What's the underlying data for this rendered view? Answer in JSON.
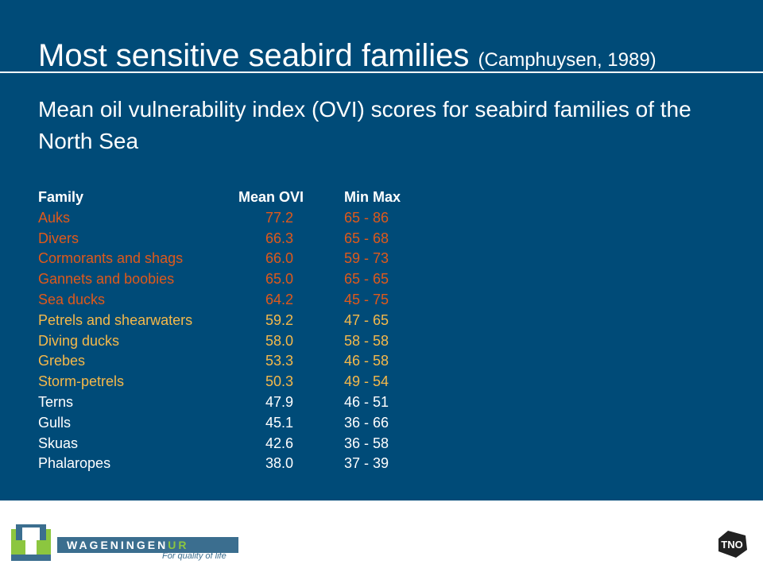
{
  "slide": {
    "title": "Most sensitive seabird families",
    "title_citation": "(Camphuysen, 1989)",
    "subtitle": "Mean oil vulnerability index (OVI) scores for seabird families of the North Sea"
  },
  "table": {
    "headers": [
      "Family",
      "Mean OVI",
      "Min Max"
    ],
    "rows": [
      {
        "family": "Auks",
        "mean": "77.2",
        "range": "65 - 86",
        "color": "orange"
      },
      {
        "family": "Divers",
        "mean": "66.3",
        "range": "65 - 68",
        "color": "orange"
      },
      {
        "family": "Cormorants and shags",
        "mean": "66.0",
        "range": "59 - 73",
        "color": "orange"
      },
      {
        "family": "Gannets and boobies",
        "mean": "65.0",
        "range": "65 - 65",
        "color": "orange"
      },
      {
        "family": "Sea ducks",
        "mean": "64.2",
        "range": "45 - 75",
        "color": "orange"
      },
      {
        "family": "Petrels and shearwaters",
        "mean": "59.2",
        "range": "47 - 65",
        "color": "yellow"
      },
      {
        "family": "Diving ducks",
        "mean": "58.0",
        "range": "58 - 58",
        "color": "yellow"
      },
      {
        "family": "Grebes",
        "mean": "53.3",
        "range": "46 - 58",
        "color": "yellow"
      },
      {
        "family": "Storm-petrels",
        "mean": "50.3",
        "range": "49 - 54",
        "color": "yellow"
      },
      {
        "family": "Terns",
        "mean": "47.9",
        "range": "46 - 51",
        "color": "white"
      },
      {
        "family": "Gulls",
        "mean": "45.1",
        "range": "36 - 66",
        "color": "white"
      },
      {
        "family": "Skuas",
        "mean": "42.6",
        "range": "36 - 58",
        "color": "white"
      },
      {
        "family": "Phalaropes",
        "mean": "38.0",
        "range": "37 - 39",
        "color": "white"
      }
    ]
  },
  "colors": {
    "background": "#004b78",
    "orange": "#e0591a",
    "yellow": "#f5b94a",
    "white": "#ffffff"
  },
  "footer": {
    "brand_main": "WAGENINGEN",
    "brand_suffix": "UR",
    "tagline": "For quality of life",
    "partner_logo": "TNO"
  }
}
